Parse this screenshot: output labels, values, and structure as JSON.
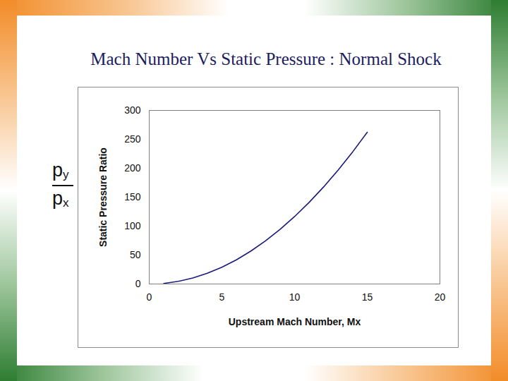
{
  "chart_data": {
    "type": "line",
    "title": "Mach Number Vs Static Pressure : Normal Shock",
    "ratio_label": {
      "numerator": "p",
      "numerator_subscript": "y",
      "denominator": "p",
      "denominator_subscript": "x"
    },
    "xlabel": "Upstream Mach Number, Mx",
    "ylabel": "Static Pressure Ratio",
    "x": [
      1,
      2,
      3,
      4,
      5,
      6,
      7,
      8,
      9,
      10,
      11,
      12,
      13,
      14,
      15
    ],
    "values": [
      1,
      4.5,
      10.3,
      18.5,
      29,
      41.8,
      57,
      74.5,
      94.3,
      116.5,
      141,
      167.8,
      197,
      228.5,
      262.3
    ],
    "color": "#1a1a7a",
    "xlim": [
      0,
      20
    ],
    "xticks": [
      0,
      5,
      10,
      15,
      20
    ],
    "ylim": [
      0,
      300
    ],
    "yticks": [
      0,
      50,
      100,
      150,
      200,
      250,
      300
    ]
  }
}
